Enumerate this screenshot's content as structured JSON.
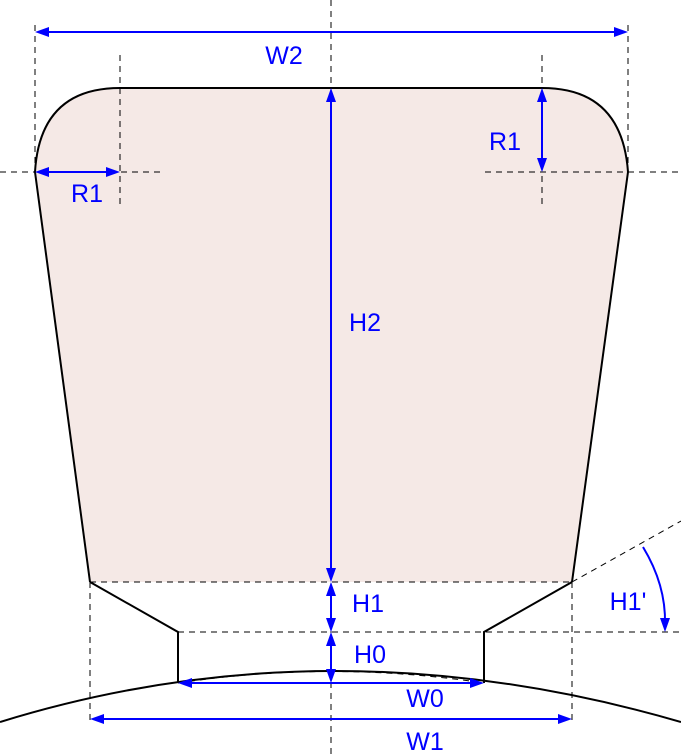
{
  "labels": {
    "w2": "W2",
    "r1_left": "R1",
    "r1_right": "R1",
    "h2": "H2",
    "h1": "H1",
    "h1_prime": "H1'",
    "h0": "H0",
    "w0": "W0",
    "w1": "W1"
  },
  "colors": {
    "body_fill": "#f5e9e6",
    "dimension": "#0000ff",
    "outline": "#000000",
    "background": "#ffffff"
  }
}
